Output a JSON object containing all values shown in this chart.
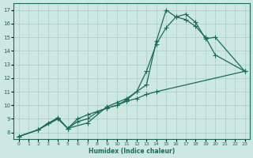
{
  "bg_color": "#cce8e0",
  "grid_color": "#a8cfc8",
  "line_color": "#1a6b5a",
  "xlabel": "Humidex (Indice chaleur)",
  "xlim": [
    -0.5,
    23.5
  ],
  "ylim": [
    7.5,
    17.5
  ],
  "yticks": [
    8,
    9,
    10,
    11,
    12,
    13,
    14,
    15,
    16,
    17
  ],
  "xticks": [
    0,
    1,
    2,
    3,
    4,
    5,
    6,
    7,
    8,
    9,
    10,
    11,
    12,
    13,
    14,
    15,
    16,
    17,
    18,
    19,
    20,
    21,
    22,
    23
  ],
  "line1_x": [
    0,
    2,
    3,
    4,
    5,
    6,
    7,
    8,
    9,
    10,
    11,
    12,
    13,
    14,
    23
  ],
  "line1_y": [
    7.7,
    8.2,
    8.7,
    9.0,
    8.3,
    8.8,
    9.0,
    9.5,
    9.8,
    10.0,
    10.3,
    10.5,
    10.8,
    11.0,
    12.5
  ],
  "line2_x": [
    0,
    2,
    4,
    5,
    6,
    7,
    9,
    10,
    11,
    12,
    13,
    14,
    15,
    16,
    17,
    18,
    19,
    20,
    23
  ],
  "line2_y": [
    7.7,
    8.2,
    9.0,
    8.3,
    9.0,
    9.3,
    9.8,
    10.0,
    10.4,
    11.0,
    12.5,
    14.5,
    15.7,
    16.5,
    16.3,
    15.8,
    15.0,
    13.7,
    12.5
  ],
  "line3_x": [
    0,
    2,
    4,
    5,
    7,
    9,
    10,
    11,
    13,
    14,
    15,
    16,
    17,
    18,
    19,
    20,
    23
  ],
  "line3_y": [
    7.7,
    8.2,
    9.1,
    8.3,
    8.7,
    9.9,
    10.2,
    10.5,
    11.5,
    14.7,
    17.0,
    16.5,
    16.7,
    16.1,
    14.9,
    15.0,
    12.5
  ]
}
